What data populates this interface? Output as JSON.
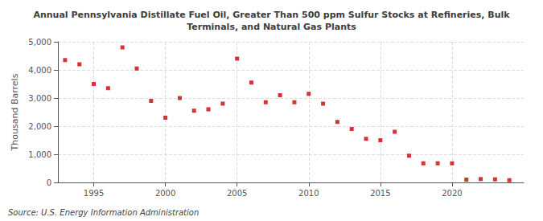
{
  "chart_data": {
    "type": "scatter",
    "title": "Annual Pennsylvania Distillate Fuel Oil, Greater Than 500 ppm Sulfur Stocks at Refineries, Bulk\nTerminals, and Natural Gas Plants",
    "ylabel": "Thousand Barrels",
    "annotations": [
      "Source: U.S. Energy Information Administration"
    ],
    "x": [
      1993,
      1994,
      1995,
      1996,
      1997,
      1998,
      1999,
      2000,
      2001,
      2002,
      2003,
      2004,
      2005,
      2006,
      2007,
      2008,
      2009,
      2010,
      2011,
      2012,
      2013,
      2014,
      2015,
      2016,
      2017,
      2018,
      2019,
      2020,
      2021,
      2022,
      2023,
      2024
    ],
    "values": [
      4350,
      4200,
      3500,
      3350,
      4800,
      4050,
      2900,
      2300,
      3000,
      2550,
      2600,
      2800,
      4400,
      3550,
      2850,
      3100,
      2850,
      3150,
      2800,
      2150,
      1900,
      1550,
      1500,
      1800,
      950,
      680,
      680,
      680,
      100,
      120,
      110,
      80
    ],
    "color": "#cc0000",
    "marker": "square",
    "xlim": [
      1992.5,
      2025
    ],
    "xticks": [
      1995,
      2000,
      2005,
      2010,
      2015,
      2020
    ],
    "ylim": [
      0,
      5000
    ],
    "yticks": [
      0,
      {
        "value": 1000,
        "label": "1,000"
      },
      {
        "value": 2000,
        "label": "2,000"
      },
      {
        "value": 3000,
        "label": "3,000"
      },
      {
        "value": 4000,
        "label": "4,000"
      },
      {
        "value": 5000,
        "label": "5,000"
      }
    ],
    "grid": true
  }
}
